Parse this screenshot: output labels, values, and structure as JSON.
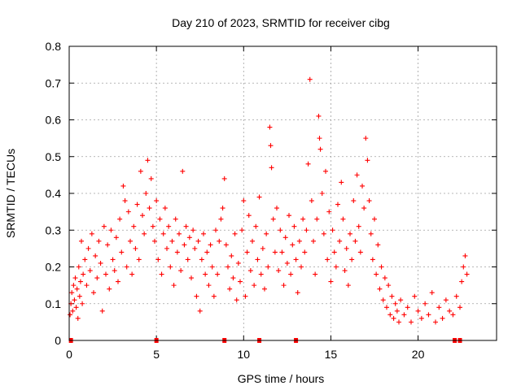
{
  "chart_data": {
    "type": "scatter",
    "title": "Day 210 of 2023, SRMTID for receiver cibg",
    "xlabel": "GPS time / hours",
    "ylabel": "SRMTID / TECUs",
    "xlim": [
      0,
      24.5
    ],
    "ylim": [
      0,
      0.8
    ],
    "xticks": [
      0,
      5,
      10,
      15,
      20
    ],
    "xtick_labels": [
      "0",
      "5",
      "10",
      "15",
      "20"
    ],
    "yticks": [
      0,
      0.1,
      0.2,
      0.3,
      0.4,
      0.5,
      0.6,
      0.7,
      0.8
    ],
    "ytick_labels": [
      "0",
      "0.1",
      "0.2",
      "0.3",
      "0.4",
      "0.5",
      "0.6",
      "0.7",
      "0.8"
    ],
    "grid": true,
    "marker": "plus",
    "color": "#ff0000",
    "series": [
      {
        "name": "SRMTID",
        "points": [
          [
            0.05,
            0.07
          ],
          [
            0.1,
            0.1
          ],
          [
            0.15,
            0.13
          ],
          [
            0.2,
            0.08
          ],
          [
            0.25,
            0.15
          ],
          [
            0.3,
            0.11
          ],
          [
            0.35,
            0.17
          ],
          [
            0.4,
            0.09
          ],
          [
            0.45,
            0.14
          ],
          [
            0.5,
            0.06
          ],
          [
            0.55,
            0.2
          ],
          [
            0.6,
            0.12
          ],
          [
            0.65,
            0.16
          ],
          [
            0.7,
            0.27
          ],
          [
            0.75,
            0.1
          ],
          [
            0.8,
            0.18
          ],
          [
            0.9,
            0.22
          ],
          [
            1.0,
            0.15
          ],
          [
            1.1,
            0.25
          ],
          [
            1.2,
            0.19
          ],
          [
            1.3,
            0.29
          ],
          [
            1.4,
            0.13
          ],
          [
            1.5,
            0.23
          ],
          [
            1.6,
            0.17
          ],
          [
            1.7,
            0.27
          ],
          [
            1.8,
            0.21
          ],
          [
            1.9,
            0.08
          ],
          [
            2.0,
            0.31
          ],
          [
            2.1,
            0.18
          ],
          [
            2.2,
            0.26
          ],
          [
            2.3,
            0.14
          ],
          [
            2.4,
            0.3
          ],
          [
            2.5,
            0.22
          ],
          [
            2.6,
            0.19
          ],
          [
            2.7,
            0.28
          ],
          [
            2.8,
            0.16
          ],
          [
            2.9,
            0.33
          ],
          [
            3.0,
            0.24
          ],
          [
            3.1,
            0.42
          ],
          [
            3.2,
            0.38
          ],
          [
            3.3,
            0.2
          ],
          [
            3.4,
            0.35
          ],
          [
            3.5,
            0.27
          ],
          [
            3.6,
            0.18
          ],
          [
            3.7,
            0.31
          ],
          [
            3.8,
            0.25
          ],
          [
            3.9,
            0.37
          ],
          [
            4.0,
            0.22
          ],
          [
            4.1,
            0.46
          ],
          [
            4.2,
            0.34
          ],
          [
            4.3,
            0.29
          ],
          [
            4.4,
            0.4
          ],
          [
            4.5,
            0.49
          ],
          [
            4.6,
            0.36
          ],
          [
            4.7,
            0.44
          ],
          [
            4.8,
            0.31
          ],
          [
            4.9,
            0.27
          ],
          [
            5.0,
            0.38
          ],
          [
            5.1,
            0.22
          ],
          [
            5.2,
            0.33
          ],
          [
            5.3,
            0.18
          ],
          [
            5.4,
            0.29
          ],
          [
            5.5,
            0.36
          ],
          [
            5.6,
            0.25
          ],
          [
            5.7,
            0.31
          ],
          [
            5.8,
            0.2
          ],
          [
            5.9,
            0.27
          ],
          [
            6.0,
            0.15
          ],
          [
            6.1,
            0.33
          ],
          [
            6.2,
            0.24
          ],
          [
            6.3,
            0.29
          ],
          [
            6.4,
            0.19
          ],
          [
            6.5,
            0.46
          ],
          [
            6.6,
            0.26
          ],
          [
            6.7,
            0.31
          ],
          [
            6.8,
            0.22
          ],
          [
            6.9,
            0.28
          ],
          [
            7.0,
            0.17
          ],
          [
            7.1,
            0.3
          ],
          [
            7.2,
            0.25
          ],
          [
            7.3,
            0.12
          ],
          [
            7.4,
            0.27
          ],
          [
            7.5,
            0.08
          ],
          [
            7.6,
            0.22
          ],
          [
            7.7,
            0.29
          ],
          [
            7.8,
            0.18
          ],
          [
            7.9,
            0.24
          ],
          [
            8.0,
            0.15
          ],
          [
            8.1,
            0.26
          ],
          [
            8.2,
            0.2
          ],
          [
            8.3,
            0.12
          ],
          [
            8.4,
            0.3
          ],
          [
            8.5,
            0.18
          ],
          [
            8.6,
            0.27
          ],
          [
            8.7,
            0.33
          ],
          [
            8.8,
            0.36
          ],
          [
            8.9,
            0.44
          ],
          [
            9.0,
            0.26
          ],
          [
            9.1,
            0.2
          ],
          [
            9.2,
            0.14
          ],
          [
            9.3,
            0.23
          ],
          [
            9.4,
            0.17
          ],
          [
            9.5,
            0.29
          ],
          [
            9.6,
            0.11
          ],
          [
            9.7,
            0.21
          ],
          [
            9.8,
            0.16
          ],
          [
            9.9,
            0.3
          ],
          [
            10.0,
            0.38
          ],
          [
            10.1,
            0.12
          ],
          [
            10.2,
            0.24
          ],
          [
            10.3,
            0.34
          ],
          [
            10.4,
            0.19
          ],
          [
            10.5,
            0.27
          ],
          [
            10.6,
            0.15
          ],
          [
            10.7,
            0.31
          ],
          [
            10.8,
            0.22
          ],
          [
            10.9,
            0.39
          ],
          [
            11.0,
            0.18
          ],
          [
            11.1,
            0.25
          ],
          [
            11.2,
            0.14
          ],
          [
            11.3,
            0.29
          ],
          [
            11.4,
            0.2
          ],
          [
            11.5,
            0.58
          ],
          [
            11.55,
            0.53
          ],
          [
            11.6,
            0.47
          ],
          [
            11.7,
            0.33
          ],
          [
            11.8,
            0.24
          ],
          [
            11.9,
            0.36
          ],
          [
            12.0,
            0.19
          ],
          [
            12.1,
            0.3
          ],
          [
            12.2,
            0.24
          ],
          [
            12.3,
            0.15
          ],
          [
            12.4,
            0.28
          ],
          [
            12.5,
            0.21
          ],
          [
            12.6,
            0.34
          ],
          [
            12.7,
            0.18
          ],
          [
            12.8,
            0.26
          ],
          [
            12.9,
            0.31
          ],
          [
            13.0,
            0.22
          ],
          [
            13.1,
            0.13
          ],
          [
            13.2,
            0.27
          ],
          [
            13.3,
            0.2
          ],
          [
            13.4,
            0.33
          ],
          [
            13.5,
            0.24
          ],
          [
            13.6,
            0.3
          ],
          [
            13.7,
            0.48
          ],
          [
            13.8,
            0.71
          ],
          [
            13.9,
            0.38
          ],
          [
            14.0,
            0.27
          ],
          [
            14.1,
            0.18
          ],
          [
            14.2,
            0.33
          ],
          [
            14.3,
            0.61
          ],
          [
            14.35,
            0.55
          ],
          [
            14.4,
            0.52
          ],
          [
            14.5,
            0.4
          ],
          [
            14.6,
            0.29
          ],
          [
            14.7,
            0.46
          ],
          [
            14.8,
            0.22
          ],
          [
            14.9,
            0.35
          ],
          [
            15.0,
            0.16
          ],
          [
            15.1,
            0.3
          ],
          [
            15.2,
            0.24
          ],
          [
            15.3,
            0.2
          ],
          [
            15.4,
            0.37
          ],
          [
            15.5,
            0.27
          ],
          [
            15.6,
            0.43
          ],
          [
            15.7,
            0.33
          ],
          [
            15.8,
            0.19
          ],
          [
            15.9,
            0.25
          ],
          [
            16.0,
            0.15
          ],
          [
            16.1,
            0.29
          ],
          [
            16.2,
            0.22
          ],
          [
            16.3,
            0.38
          ],
          [
            16.4,
            0.27
          ],
          [
            16.5,
            0.45
          ],
          [
            16.6,
            0.31
          ],
          [
            16.7,
            0.24
          ],
          [
            16.8,
            0.42
          ],
          [
            16.9,
            0.36
          ],
          [
            17.0,
            0.55
          ],
          [
            17.1,
            0.49
          ],
          [
            17.2,
            0.38
          ],
          [
            17.3,
            0.29
          ],
          [
            17.4,
            0.22
          ],
          [
            17.5,
            0.33
          ],
          [
            17.6,
            0.18
          ],
          [
            17.7,
            0.26
          ],
          [
            17.8,
            0.14
          ],
          [
            17.9,
            0.2
          ],
          [
            18.0,
            0.11
          ],
          [
            18.1,
            0.17
          ],
          [
            18.2,
            0.09
          ],
          [
            18.3,
            0.15
          ],
          [
            18.4,
            0.07
          ],
          [
            18.5,
            0.12
          ],
          [
            18.6,
            0.06
          ],
          [
            18.7,
            0.1
          ],
          [
            18.8,
            0.08
          ],
          [
            18.9,
            0.05
          ],
          [
            19.0,
            0.11
          ],
          [
            19.2,
            0.07
          ],
          [
            19.4,
            0.09
          ],
          [
            19.6,
            0.05
          ],
          [
            19.8,
            0.12
          ],
          [
            20.0,
            0.08
          ],
          [
            20.2,
            0.06
          ],
          [
            20.4,
            0.1
          ],
          [
            20.6,
            0.07
          ],
          [
            20.8,
            0.13
          ],
          [
            21.0,
            0.05
          ],
          [
            21.2,
            0.09
          ],
          [
            21.4,
            0.06
          ],
          [
            21.6,
            0.11
          ],
          [
            21.8,
            0.08
          ],
          [
            22.0,
            0.07
          ],
          [
            22.2,
            0.12
          ],
          [
            22.4,
            0.09
          ],
          [
            22.5,
            0.16
          ],
          [
            22.6,
            0.2
          ],
          [
            22.7,
            0.23
          ],
          [
            22.8,
            0.18
          ]
        ]
      }
    ],
    "gap_markers_x": [
      0.1,
      5.0,
      8.9,
      10.9,
      13.0,
      22.1,
      22.4
    ]
  }
}
